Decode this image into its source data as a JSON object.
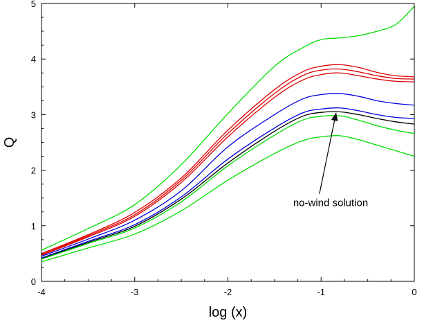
{
  "chart_data": {
    "type": "line",
    "title": "",
    "xlabel": "log (x)",
    "ylabel": "Q",
    "xlim": [
      -4,
      0
    ],
    "ylim": [
      0,
      5
    ],
    "xticks": [
      -4,
      -3,
      -2,
      -1,
      0
    ],
    "yticks": [
      0,
      1,
      2,
      3,
      4,
      5
    ],
    "grid": false,
    "legend": "none",
    "series": [
      {
        "color": "#00dd00",
        "x": [
          -4,
          -3.5,
          -3,
          -2.5,
          -2,
          -1.5,
          -1.2,
          -1,
          -0.8,
          -0.6,
          -0.4,
          -0.2,
          0
        ],
        "y": [
          0.56,
          0.95,
          1.38,
          2.1,
          3.02,
          3.87,
          4.2,
          4.35,
          4.38,
          4.42,
          4.5,
          4.62,
          4.95
        ]
      },
      {
        "color": "#dd0000",
        "x": [
          -4,
          -3.5,
          -3,
          -2.5,
          -2,
          -1.5,
          -1.2,
          -1,
          -0.8,
          -0.6,
          -0.4,
          -0.2,
          0
        ],
        "y": [
          0.5,
          0.84,
          1.24,
          1.86,
          2.72,
          3.45,
          3.77,
          3.87,
          3.9,
          3.85,
          3.76,
          3.7,
          3.68
        ]
      },
      {
        "color": "#dd0000",
        "x": [
          -4,
          -3.5,
          -3,
          -2.5,
          -2,
          -1.5,
          -1.2,
          -1,
          -0.8,
          -0.6,
          -0.4,
          -0.2,
          0
        ],
        "y": [
          0.48,
          0.82,
          1.2,
          1.82,
          2.66,
          3.38,
          3.7,
          3.8,
          3.82,
          3.77,
          3.7,
          3.65,
          3.64
        ]
      },
      {
        "color": "#dd0000",
        "x": [
          -4,
          -3.5,
          -3,
          -2.5,
          -2,
          -1.5,
          -1.2,
          -1,
          -0.8,
          -0.6,
          -0.4,
          -0.2,
          0
        ],
        "y": [
          0.47,
          0.8,
          1.17,
          1.78,
          2.6,
          3.31,
          3.62,
          3.72,
          3.75,
          3.7,
          3.64,
          3.6,
          3.59
        ]
      },
      {
        "color": "#0000dd",
        "x": [
          -4,
          -3.5,
          -3,
          -2.5,
          -2,
          -1.5,
          -1.2,
          -1,
          -0.8,
          -0.6,
          -0.4,
          -0.2,
          0
        ],
        "y": [
          0.45,
          0.76,
          1.1,
          1.63,
          2.42,
          3.0,
          3.28,
          3.36,
          3.38,
          3.33,
          3.25,
          3.2,
          3.17
        ]
      },
      {
        "color": "#0000dd",
        "x": [
          -4,
          -3.5,
          -3,
          -2.5,
          -2,
          -1.5,
          -1.2,
          -1,
          -0.8,
          -0.6,
          -0.4,
          -0.2,
          0
        ],
        "y": [
          0.42,
          0.72,
          1.02,
          1.52,
          2.2,
          2.76,
          3.03,
          3.1,
          3.12,
          3.07,
          3.0,
          2.95,
          2.93
        ]
      },
      {
        "color": "#000000",
        "x": [
          -4,
          -3.5,
          -3,
          -2.5,
          -2,
          -1.5,
          -1.2,
          -1,
          -0.8,
          -0.6,
          -0.4,
          -0.2,
          0
        ],
        "y": [
          0.41,
          0.7,
          0.99,
          1.48,
          2.13,
          2.7,
          2.97,
          3.04,
          3.05,
          3.0,
          2.93,
          2.87,
          2.83
        ]
      },
      {
        "color": "#00dd00",
        "x": [
          -4,
          -3.5,
          -3,
          -2.5,
          -2,
          -1.5,
          -1.2,
          -1,
          -0.8,
          -0.6,
          -0.4,
          -0.2,
          0
        ],
        "y": [
          0.4,
          0.68,
          0.96,
          1.43,
          2.08,
          2.63,
          2.9,
          2.97,
          2.98,
          2.9,
          2.8,
          2.72,
          2.66
        ]
      },
      {
        "color": "#00dd00",
        "x": [
          -4,
          -3.5,
          -3,
          -2.5,
          -2,
          -1.5,
          -1.2,
          -1,
          -0.8,
          -0.6,
          -0.4,
          -0.2,
          0
        ],
        "y": [
          0.35,
          0.6,
          0.85,
          1.27,
          1.82,
          2.3,
          2.53,
          2.6,
          2.62,
          2.55,
          2.45,
          2.35,
          2.25
        ]
      }
    ],
    "annotation": {
      "text": "no-wind solution",
      "text_x": -1.3,
      "text_y": 1.35,
      "arrow_to_x": -0.84,
      "arrow_to_y": 3.05
    }
  }
}
